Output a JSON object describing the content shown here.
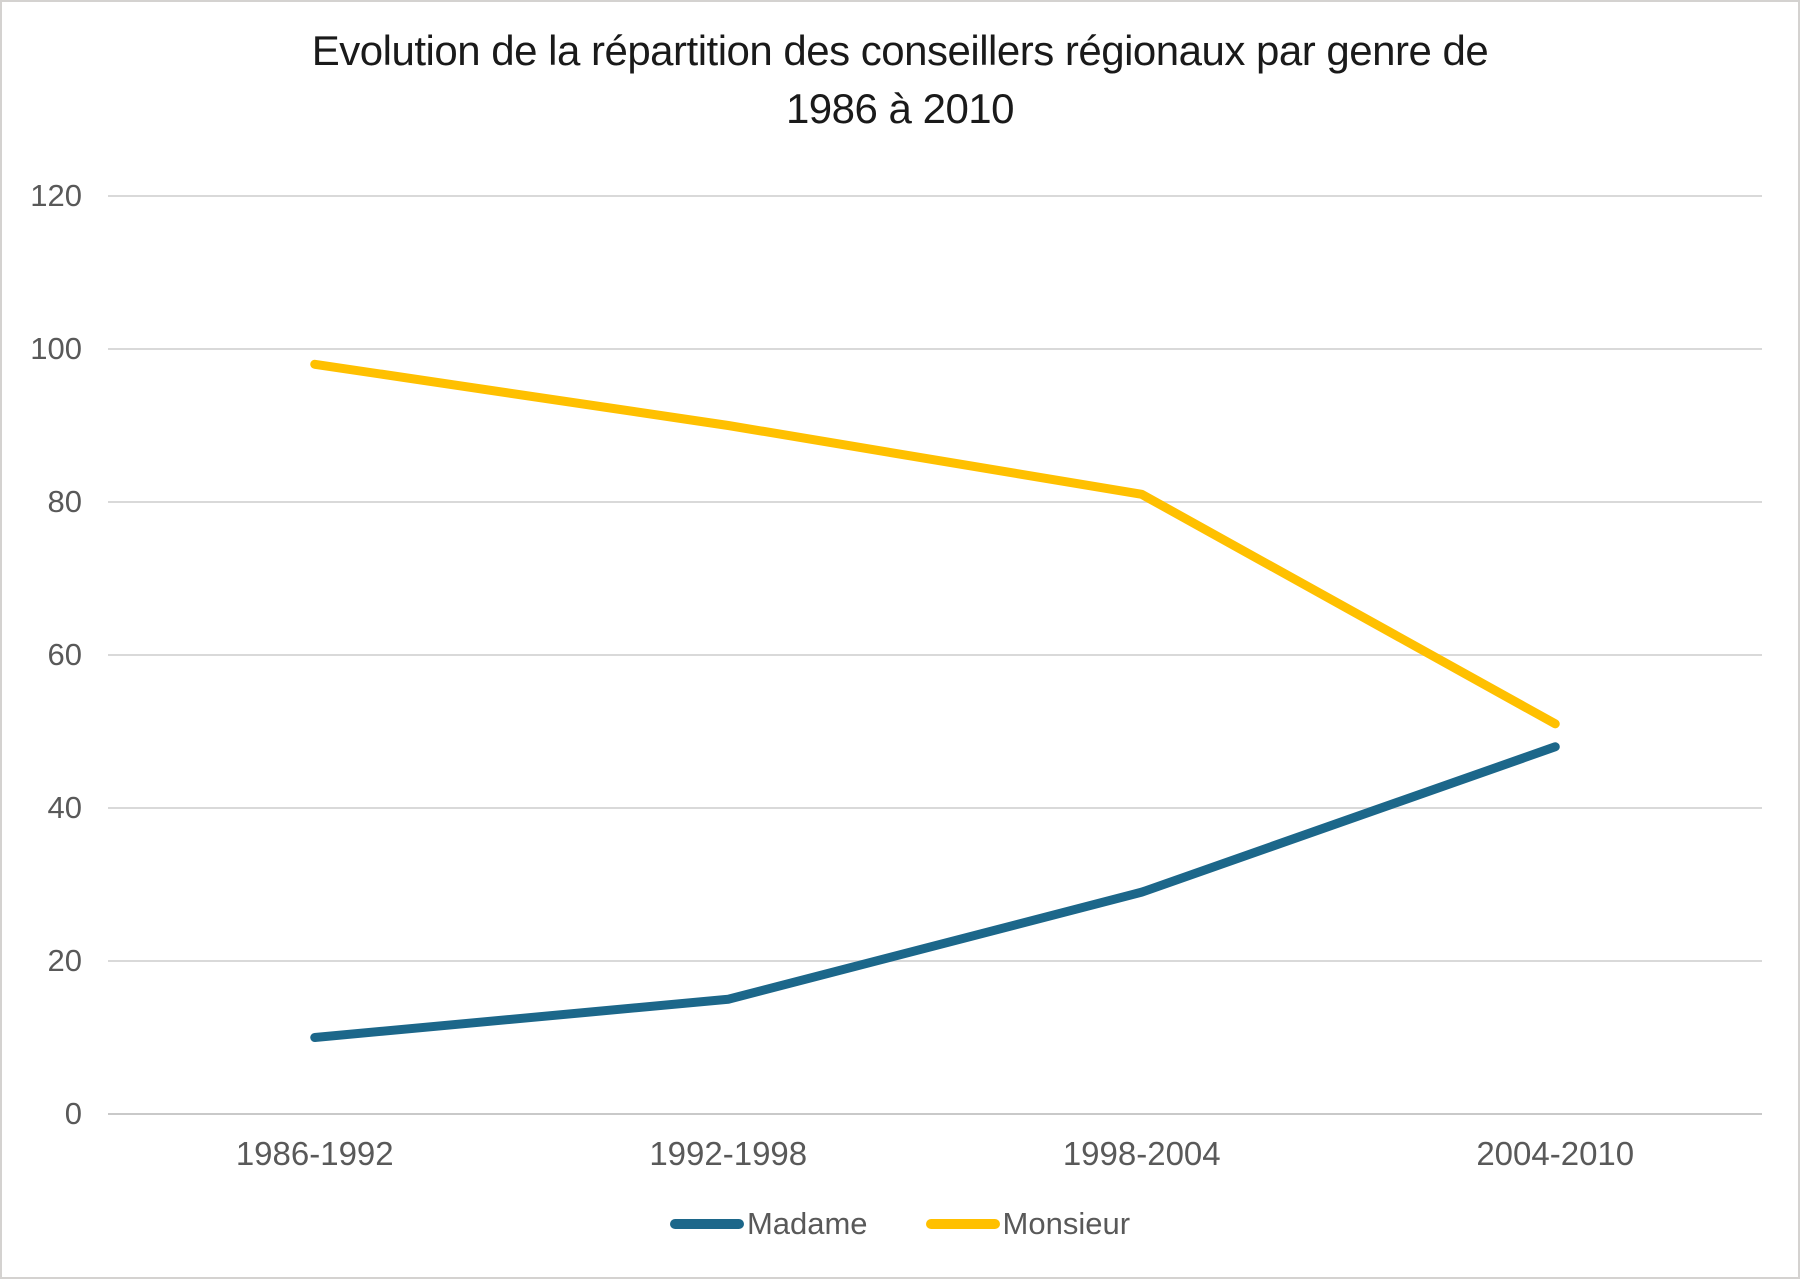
{
  "chart_data": {
    "type": "line",
    "title": "Evolution de la répartition des conseillers régionaux par genre de 1986 à 2010",
    "title_lines": [
      "Evolution de la répartition des conseillers régionaux par genre de",
      "1986 à 2010"
    ],
    "categories": [
      "1986-1992",
      "1992-1998",
      "1998-2004",
      "2004-2010"
    ],
    "series": [
      {
        "name": "Madame",
        "color": "#1C678A",
        "values": [
          10,
          15,
          29,
          48
        ]
      },
      {
        "name": "Monsieur",
        "color": "#FFC000",
        "values": [
          98,
          90,
          81,
          51
        ]
      }
    ],
    "xlabel": "",
    "ylabel": "",
    "ylim": [
      0,
      120
    ],
    "yticks": [
      0,
      20,
      40,
      60,
      80,
      100,
      120
    ],
    "grid": true,
    "legend_position": "bottom"
  },
  "colors": {
    "grid": "#d9d9d9",
    "axis_line": "#c9c9c9",
    "axis_text": "#595959",
    "title_text": "#1a1a1a",
    "background": "#ffffff",
    "border": "#d4d2d0"
  }
}
